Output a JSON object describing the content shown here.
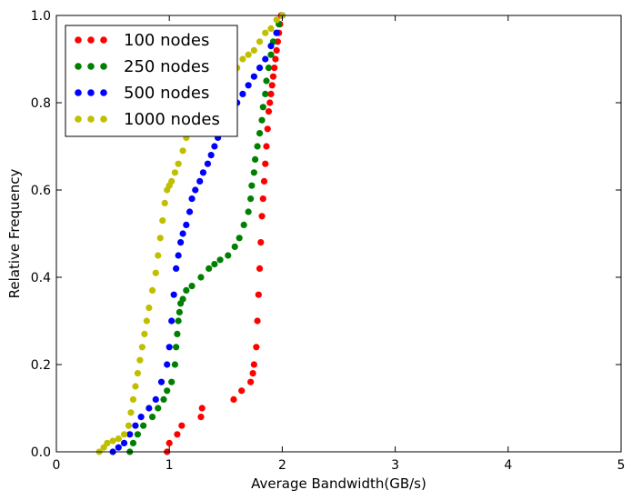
{
  "chart_data": {
    "type": "scatter",
    "title": "",
    "xlabel": "Average Bandwidth(GB/s)",
    "ylabel": "Relative Frequency",
    "xlim": [
      0,
      5
    ],
    "ylim": [
      0.0,
      1.0
    ],
    "xticks": [
      "0",
      "1",
      "2",
      "3",
      "4",
      "5"
    ],
    "yticks": [
      "0.0",
      "0.2",
      "0.4",
      "0.6",
      "0.8",
      "1.0"
    ],
    "grid": false,
    "legend_position": "top-left",
    "series": [
      {
        "name": "100 nodes",
        "color": "#ff0000",
        "x": [
          0.98,
          1.0,
          1.07,
          1.11,
          1.28,
          1.29,
          1.57,
          1.64,
          1.72,
          1.74,
          1.75,
          1.77,
          1.78,
          1.79,
          1.8,
          1.81,
          1.82,
          1.83,
          1.84,
          1.85,
          1.86,
          1.87,
          1.88,
          1.89,
          1.9,
          1.91,
          1.92,
          1.93,
          1.94,
          1.95,
          1.96,
          1.97,
          1.98,
          1.99
        ],
        "y": [
          0.0,
          0.02,
          0.04,
          0.06,
          0.08,
          0.1,
          0.12,
          0.14,
          0.16,
          0.18,
          0.2,
          0.24,
          0.3,
          0.36,
          0.42,
          0.48,
          0.54,
          0.58,
          0.62,
          0.66,
          0.7,
          0.74,
          0.78,
          0.8,
          0.82,
          0.84,
          0.86,
          0.88,
          0.9,
          0.92,
          0.94,
          0.96,
          0.98,
          1.0
        ]
      },
      {
        "name": "250 nodes",
        "color": "#008000",
        "x": [
          0.65,
          0.68,
          0.72,
          0.77,
          0.85,
          0.9,
          0.95,
          0.98,
          1.02,
          1.05,
          1.06,
          1.07,
          1.08,
          1.09,
          1.1,
          1.12,
          1.15,
          1.2,
          1.28,
          1.35,
          1.4,
          1.45,
          1.52,
          1.58,
          1.62,
          1.66,
          1.7,
          1.72,
          1.73,
          1.75,
          1.76,
          1.78,
          1.8,
          1.82,
          1.83,
          1.85,
          1.86,
          1.88,
          1.9,
          1.92,
          1.95,
          1.97,
          2.0
        ],
        "y": [
          0.0,
          0.02,
          0.04,
          0.06,
          0.08,
          0.1,
          0.12,
          0.14,
          0.16,
          0.2,
          0.24,
          0.27,
          0.3,
          0.32,
          0.34,
          0.35,
          0.37,
          0.38,
          0.4,
          0.42,
          0.43,
          0.44,
          0.45,
          0.47,
          0.49,
          0.52,
          0.55,
          0.58,
          0.61,
          0.64,
          0.67,
          0.7,
          0.73,
          0.76,
          0.79,
          0.82,
          0.85,
          0.88,
          0.91,
          0.94,
          0.96,
          0.98,
          1.0
        ]
      },
      {
        "name": "500 nodes",
        "color": "#0000ff",
        "x": [
          0.5,
          0.55,
          0.6,
          0.65,
          0.7,
          0.75,
          0.82,
          0.88,
          0.93,
          0.98,
          1.0,
          1.02,
          1.04,
          1.06,
          1.08,
          1.1,
          1.12,
          1.15,
          1.18,
          1.2,
          1.23,
          1.27,
          1.3,
          1.34,
          1.37,
          1.4,
          1.43,
          1.46,
          1.5,
          1.55,
          1.6,
          1.65,
          1.7,
          1.75,
          1.8,
          1.85,
          1.9,
          1.95,
          2.0
        ],
        "y": [
          0.0,
          0.01,
          0.02,
          0.04,
          0.06,
          0.08,
          0.1,
          0.12,
          0.16,
          0.2,
          0.24,
          0.3,
          0.36,
          0.42,
          0.45,
          0.48,
          0.5,
          0.52,
          0.55,
          0.58,
          0.6,
          0.62,
          0.64,
          0.66,
          0.68,
          0.7,
          0.72,
          0.74,
          0.76,
          0.78,
          0.8,
          0.82,
          0.84,
          0.86,
          0.88,
          0.9,
          0.93,
          0.96,
          1.0
        ]
      },
      {
        "name": "1000 nodes",
        "color": "#bfbf00",
        "x": [
          0.38,
          0.42,
          0.45,
          0.5,
          0.55,
          0.6,
          0.64,
          0.66,
          0.68,
          0.7,
          0.72,
          0.74,
          0.76,
          0.78,
          0.8,
          0.82,
          0.85,
          0.88,
          0.9,
          0.92,
          0.94,
          0.96,
          0.98,
          1.0,
          1.02,
          1.05,
          1.08,
          1.12,
          1.15,
          1.2,
          1.25,
          1.3,
          1.35,
          1.4,
          1.45,
          1.5,
          1.55,
          1.6,
          1.65,
          1.7,
          1.75,
          1.8,
          1.85,
          1.9,
          1.95,
          2.0
        ],
        "y": [
          0.0,
          0.01,
          0.02,
          0.025,
          0.03,
          0.04,
          0.06,
          0.09,
          0.12,
          0.15,
          0.18,
          0.21,
          0.24,
          0.27,
          0.3,
          0.33,
          0.37,
          0.41,
          0.45,
          0.49,
          0.53,
          0.57,
          0.6,
          0.61,
          0.62,
          0.64,
          0.66,
          0.69,
          0.72,
          0.74,
          0.76,
          0.78,
          0.79,
          0.8,
          0.82,
          0.84,
          0.86,
          0.88,
          0.9,
          0.91,
          0.92,
          0.94,
          0.96,
          0.97,
          0.99,
          1.0
        ]
      }
    ]
  }
}
